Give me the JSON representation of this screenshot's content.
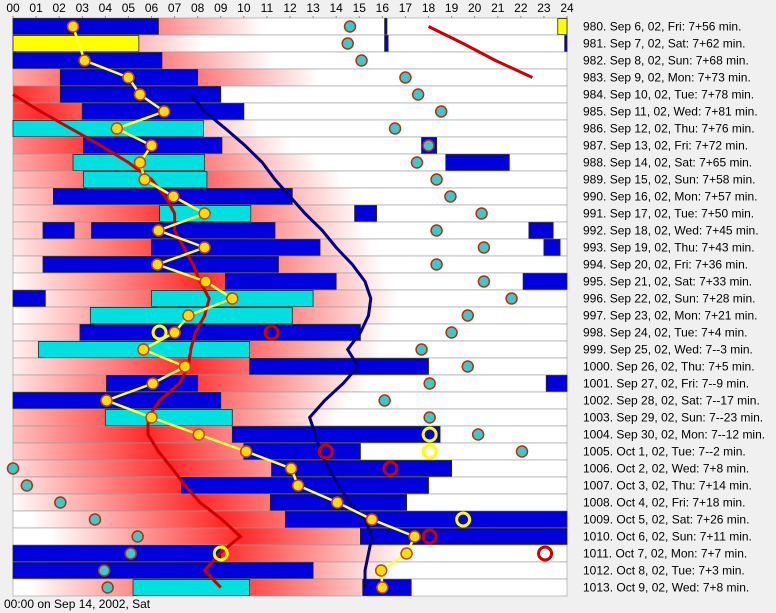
{
  "chart_data": {
    "type": "sleep-chart",
    "xlim": [
      0,
      24
    ],
    "xticks": [
      {
        "value": 0,
        "label": "00"
      },
      {
        "value": 1,
        "label": "01"
      },
      {
        "value": 2,
        "label": "02"
      },
      {
        "value": 3,
        "label": "03"
      },
      {
        "value": 4,
        "label": "04"
      },
      {
        "value": 5,
        "label": "05"
      },
      {
        "value": 6,
        "label": "06"
      },
      {
        "value": 7,
        "label": "07"
      },
      {
        "value": 8,
        "label": "08"
      },
      {
        "value": 9,
        "label": "09"
      },
      10,
      11,
      12,
      13,
      14,
      15,
      16,
      17,
      18,
      19,
      20,
      21,
      22,
      23,
      24
    ],
    "footer": "00:00 on Sep 14, 2002, Sat",
    "dot_color": "#ffdd00",
    "teal_color": "#40c8c8",
    "rows": [
      {
        "label": "980. Sep 6, 02, Fri: 7+56 min.",
        "blocks": [
          {
            "start": 0,
            "end": 6.3,
            "color": "#0000dd"
          },
          {
            "start": 16.1,
            "end": 16.2,
            "color": "#0000dd"
          },
          {
            "start": 23.6,
            "end": 24,
            "color": "#ffff00"
          }
        ],
        "dot": 2.6,
        "teal": 14.6,
        "rings": []
      },
      {
        "label": "981. Sep 7, 02, Sat: 7+62 min.",
        "blocks": [
          {
            "start": 0,
            "end": 5.45,
            "color": "#ffff00"
          },
          {
            "start": 16.1,
            "end": 16.25,
            "color": "#0000dd"
          },
          {
            "start": 23.9,
            "end": 24,
            "color": "#0000dd"
          }
        ],
        "dot": null,
        "teal": 14.5,
        "rings": []
      },
      {
        "label": "982. Sep 8, 02, Sun: 7+68 min.",
        "blocks": [
          {
            "start": 0,
            "end": 6.45,
            "color": "#0000dd"
          }
        ],
        "dot": 3.1,
        "teal": 15.1,
        "rings": []
      },
      {
        "label": "983. Sep 9, 02, Mon: 7+73 min.",
        "blocks": [
          {
            "start": 2.05,
            "end": 8.0,
            "color": "#0000dd"
          }
        ],
        "dot": 5.0,
        "teal": 17.0,
        "rings": []
      },
      {
        "label": "984. Sep 10, 02, Tue: 7+78 min.",
        "blocks": [
          {
            "start": 2.05,
            "end": 9.0,
            "color": "#0000dd"
          }
        ],
        "dot": 5.5,
        "teal": 17.55,
        "rings": []
      },
      {
        "label": "985. Sep 11, 02, Wed: 7+81 min.",
        "blocks": [
          {
            "start": 3.0,
            "end": 10.0,
            "color": "#0000dd"
          }
        ],
        "dot": 6.55,
        "teal": 18.55,
        "rings": []
      },
      {
        "label": "986. Sep 12, 02, Thu: 7+76 min.",
        "blocks": [
          {
            "start": 0,
            "end": 8.25,
            "color": "#00e0e0"
          }
        ],
        "dot": 4.5,
        "teal": 16.55,
        "rings": []
      },
      {
        "label": "987. Sep 13, 02, Fri: 7+72 min.",
        "blocks": [
          {
            "start": 3.05,
            "end": 9.05,
            "color": "#0000dd"
          },
          {
            "start": 17.7,
            "end": 18.35,
            "color": "#0000dd"
          }
        ],
        "dot": 6.0,
        "teal": 18.0,
        "rings": []
      },
      {
        "label": "988. Sep 14, 02, Sat: 7+65 min.",
        "blocks": [
          {
            "start": 2.6,
            "end": 8.3,
            "color": "#00e0e0"
          },
          {
            "start": 18.75,
            "end": 21.5,
            "color": "#0000dd"
          }
        ],
        "dot": 5.5,
        "teal": 17.5,
        "rings": []
      },
      {
        "label": "989. Sep 15, 02, Sun: 7+58 min.",
        "blocks": [
          {
            "start": 3.05,
            "end": 8.4,
            "color": "#00e0e0"
          }
        ],
        "dot": 5.7,
        "teal": 18.35,
        "rings": []
      },
      {
        "label": "990. Sep 16, 02, Mon: 7+57 min.",
        "blocks": [
          {
            "start": 1.75,
            "end": 12.1,
            "color": "#0000dd"
          }
        ],
        "dot": 6.95,
        "teal": 18.95,
        "rings": []
      },
      {
        "label": "991. Sep 17, 02, Tue: 7+50 min.",
        "blocks": [
          {
            "start": 6.35,
            "end": 10.3,
            "color": "#00e0e0"
          },
          {
            "start": 14.8,
            "end": 15.75,
            "color": "#0000dd"
          }
        ],
        "dot": 8.3,
        "teal": 20.3,
        "rings": []
      },
      {
        "label": "992. Sep 18, 02, Wed: 7+45 min.",
        "blocks": [
          {
            "start": 1.3,
            "end": 2.65,
            "color": "#0000dd"
          },
          {
            "start": 3.4,
            "end": 11.35,
            "color": "#0000dd"
          },
          {
            "start": 22.35,
            "end": 23.4,
            "color": "#0000dd"
          }
        ],
        "dot": 6.3,
        "teal": 18.35,
        "rings": []
      },
      {
        "label": "993. Sep 19, 02, Thu: 7+43 min.",
        "blocks": [
          {
            "start": 6.0,
            "end": 13.3,
            "color": "#0000dd"
          },
          {
            "start": 23.0,
            "end": 23.7,
            "color": "#0000dd"
          }
        ],
        "dot": 8.3,
        "teal": 20.4,
        "rings": []
      },
      {
        "label": "994. Sep 20, 02, Fri: 7+36 min.",
        "blocks": [
          {
            "start": 1.3,
            "end": 11.5,
            "color": "#0000dd"
          }
        ],
        "dot": 6.25,
        "teal": 18.35,
        "rings": []
      },
      {
        "label": "995. Sep 21, 02, Sat: 7+33 min.",
        "blocks": [
          {
            "start": 9.2,
            "end": 14.0,
            "color": "#0000dd"
          },
          {
            "start": 22.1,
            "end": 24,
            "color": "#0000dd"
          }
        ],
        "dot": 8.35,
        "teal": 20.4,
        "rings": []
      },
      {
        "label": "996. Sep 22, 02, Sun: 7+28 min.",
        "blocks": [
          {
            "start": 0,
            "end": 1.4,
            "color": "#0000dd"
          },
          {
            "start": 6.0,
            "end": 13.0,
            "color": "#00e0e0"
          }
        ],
        "dot": 9.5,
        "teal": 21.6,
        "rings": []
      },
      {
        "label": "997. Sep 23, 02, Mon: 7+21 min.",
        "blocks": [
          {
            "start": 3.35,
            "end": 12.1,
            "color": "#00e0e0"
          }
        ],
        "dot": 7.6,
        "teal": 19.7,
        "rings": []
      },
      {
        "label": "998. Sep 24, 02, Tue: 7+4 min.",
        "blocks": [
          {
            "start": 2.9,
            "end": 15.05,
            "color": "#0000dd"
          }
        ],
        "dot": 7.0,
        "teal": 19.0,
        "rings": [
          {
            "value": 6.35,
            "color": "#ffff00"
          },
          {
            "value": 11.2,
            "color": "#cc0000"
          }
        ]
      },
      {
        "label": "999. Sep 25, 02, Wed: 7--3 min.",
        "blocks": [
          {
            "start": 1.1,
            "end": 10.25,
            "color": "#00e0e0"
          }
        ],
        "dot": 5.65,
        "teal": 17.7,
        "rings": []
      },
      {
        "label": "1000. Sep 26, 02, Thu: 7+5 min.",
        "blocks": [
          {
            "start": 10.25,
            "end": 18.0,
            "color": "#0000dd"
          }
        ],
        "dot": 7.45,
        "teal": 19.7,
        "rings": []
      },
      {
        "label": "1001. Sep 27, 02, Fri: 7--9 min.",
        "blocks": [
          {
            "start": 4.05,
            "end": 8.0,
            "color": "#0000dd"
          },
          {
            "start": 23.1,
            "end": 24,
            "color": "#0000dd"
          }
        ],
        "dot": 6.05,
        "teal": 18.05,
        "rings": []
      },
      {
        "label": "1002. Sep 28, 02, Sat: 7--17 min.",
        "blocks": [
          {
            "start": 0,
            "end": 9.0,
            "color": "#0000dd"
          }
        ],
        "dot": 4.05,
        "teal": 16.1,
        "rings": []
      },
      {
        "label": "1003. Sep 29, 02, Sun: 7--23 min.",
        "blocks": [
          {
            "start": 4.0,
            "end": 9.5,
            "color": "#00e0e0"
          }
        ],
        "dot": 6.0,
        "teal": 18.05,
        "rings": []
      },
      {
        "label": "1004. Sep 30, 02, Mon: 7--12 min.",
        "blocks": [
          {
            "start": 9.5,
            "end": 18.5,
            "color": "#0000dd"
          }
        ],
        "dot": 8.05,
        "teal": 20.15,
        "rings": [
          {
            "value": 18.05,
            "color": "#ffff00"
          }
        ]
      },
      {
        "label": "1005. Oct 1, 02, Tue: 7--2 min.",
        "blocks": [
          {
            "start": 10.0,
            "end": 15.05,
            "color": "#0000dd"
          }
        ],
        "dot": 10.1,
        "teal": 22.05,
        "rings": [
          {
            "value": 13.55,
            "color": "#cc0000"
          },
          {
            "value": 18.05,
            "color": "#ffff00"
          }
        ]
      },
      {
        "label": "1006. Oct 2, 02, Wed: 7+8 min.",
        "blocks": [
          {
            "start": 11.2,
            "end": 19.0,
            "color": "#0000dd"
          }
        ],
        "dot": 12.05,
        "teal": 0,
        "rings": [
          {
            "value": 16.35,
            "color": "#cc0000"
          }
        ]
      },
      {
        "label": "1007. Oct 3, 02, Thu: 7+14 min.",
        "blocks": [
          {
            "start": 7.3,
            "end": 18.0,
            "color": "#0000dd"
          }
        ],
        "dot": 12.35,
        "teal": 0.6,
        "rings": []
      },
      {
        "label": "1008. Oct 4, 02, Fri: 7+18 min.",
        "blocks": [
          {
            "start": 11.15,
            "end": 17.05,
            "color": "#0000dd"
          }
        ],
        "dot": 14.05,
        "teal": 2.05,
        "rings": []
      },
      {
        "label": "1009. Oct 5, 02, Sat: 7+26 min.",
        "blocks": [
          {
            "start": 11.8,
            "end": 24,
            "color": "#0000dd"
          }
        ],
        "dot": 15.55,
        "teal": 3.55,
        "rings": [
          {
            "value": 19.5,
            "color": "#ffff00"
          }
        ]
      },
      {
        "label": "1010. Oct 6, 02, Sun: 7+11 min.",
        "blocks": [
          {
            "start": 15.05,
            "end": 24,
            "color": "#0000dd"
          }
        ],
        "dot": 17.4,
        "teal": 5.4,
        "rings": [
          {
            "value": 18.05,
            "color": "#cc0000"
          }
        ]
      },
      {
        "label": "1011. Oct 7, 02, Mon: 7+7 min.",
        "blocks": [
          {
            "start": 0,
            "end": 9.0,
            "color": "#0000dd"
          }
        ],
        "dot": 17.05,
        "teal": 5.1,
        "rings": [
          {
            "value": 9.0,
            "color": "#ffff00"
          },
          {
            "value": 23.05,
            "color": "#cc0000"
          }
        ]
      },
      {
        "label": "1012. Oct 8, 02, Tue: 7+3 min.",
        "blocks": [
          {
            "start": 0,
            "end": 13.0,
            "color": "#0000dd"
          }
        ],
        "dot": 15.95,
        "teal": 3.95,
        "rings": []
      },
      {
        "label": "1013. Oct 9, 02, Wed: 7+8 min.",
        "blocks": [
          {
            "start": 5.2,
            "end": 10.25,
            "color": "#00e0e0"
          },
          {
            "start": 15.15,
            "end": 17.25,
            "color": "#0000dd"
          }
        ],
        "dot": 16.0,
        "teal": 4.1,
        "rings": []
      }
    ],
    "lines": [
      {
        "color": "#cc0000",
        "values": [
          null,
          null,
          null,
          null,
          0,
          1.2,
          2.5,
          3.8,
          5.0,
          6.0,
          6.6,
          7.0,
          7.0,
          7.4,
          7.8,
          8.1,
          8.5,
          8.3,
          7.9,
          7.7,
          7.6,
          7.2,
          6.35,
          5.85,
          5.85,
          6.3,
          6.9,
          7.45,
          8.1,
          9.05,
          9.85,
          8.95,
          8.3,
          9.0
        ]
      },
      {
        "color": "#cc0000",
        "values": [
          18.0,
          19.5,
          20.9,
          22.5,
          null,
          null,
          null,
          null,
          null,
          null,
          null,
          null,
          null,
          null,
          null,
          null,
          null,
          null,
          null,
          null,
          null,
          null,
          null,
          null,
          null,
          null,
          null,
          null,
          null,
          null,
          null,
          null,
          null,
          null
        ]
      },
      {
        "color": "#000080",
        "values": [
          null,
          null,
          null,
          null,
          7.7,
          8.3,
          9.2,
          10.05,
          10.8,
          11.35,
          12.0,
          12.65,
          13.4,
          14.0,
          14.7,
          15.25,
          15.5,
          15.4,
          15.05,
          14.5,
          14.95,
          14.3,
          13.5,
          12.85,
          13.1,
          13.3,
          13.7,
          14.1,
          14.6,
          15.25,
          15.55,
          15.4,
          15.25,
          15.25
        ]
      }
    ]
  }
}
